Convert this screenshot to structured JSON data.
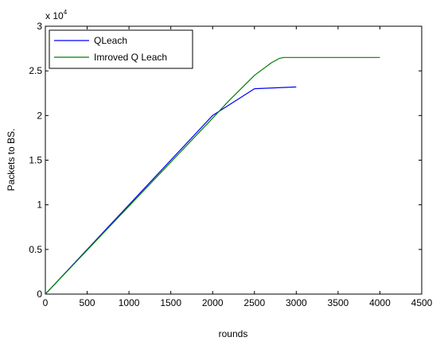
{
  "chart_data": {
    "type": "line",
    "xlabel": "rounds",
    "ylabel": "Packets to BS.",
    "y_multiplier": "x 10",
    "y_multiplier_exponent": "4",
    "xlim": [
      0,
      4500
    ],
    "ylim": [
      0,
      3
    ],
    "x_ticks": [
      "0",
      "500",
      "1000",
      "1500",
      "2000",
      "2500",
      "3000",
      "3500",
      "4000",
      "4500"
    ],
    "y_ticks": [
      "0",
      "0.5",
      "1",
      "1.5",
      "2",
      "2.5",
      "3"
    ],
    "grid": false,
    "legend_position": "top-left",
    "series": [
      {
        "name": "QLeach",
        "color": "#0000ff",
        "x": [
          0,
          2000,
          2500,
          3000
        ],
        "y": [
          0,
          2.0,
          2.3,
          2.32
        ]
      },
      {
        "name": "Imroved Q Leach",
        "color": "#008000",
        "x": [
          0,
          2000,
          2200,
          2500,
          2700,
          2800,
          2850,
          3000,
          3500,
          4000
        ],
        "y": [
          0,
          1.97,
          2.17,
          2.45,
          2.59,
          2.64,
          2.65,
          2.65,
          2.65,
          2.65
        ]
      }
    ]
  }
}
